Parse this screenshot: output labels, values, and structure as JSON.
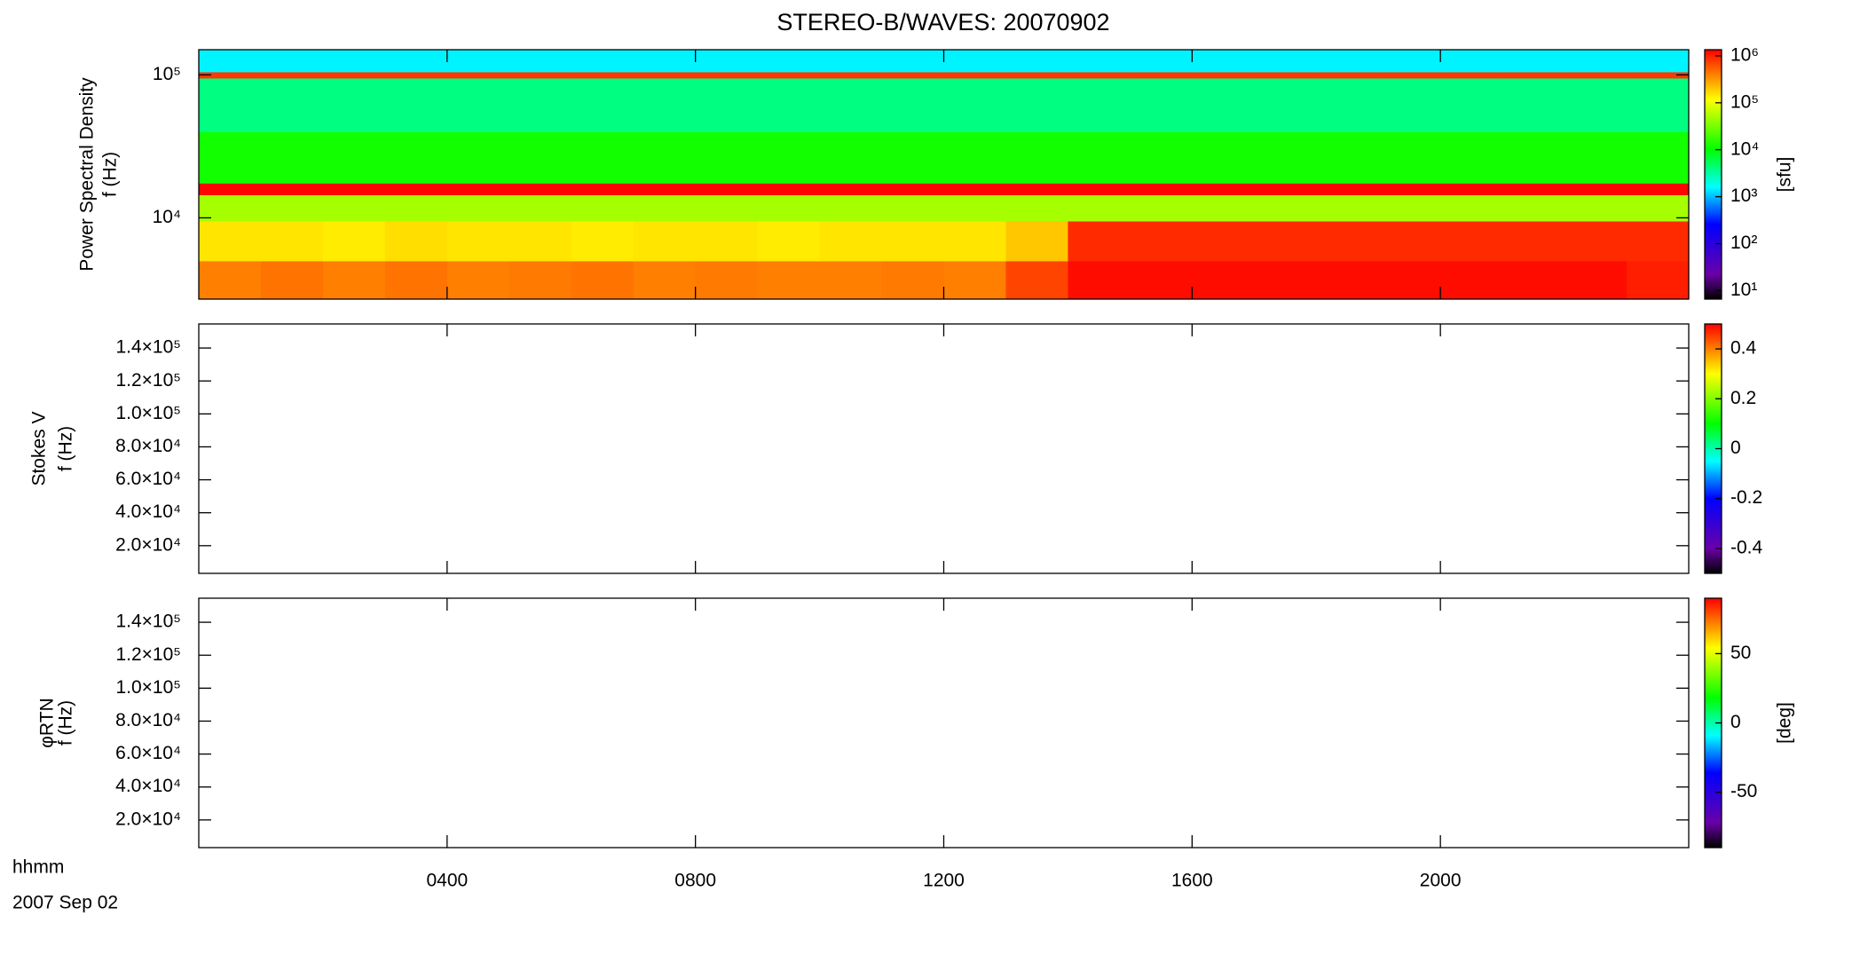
{
  "chart_data": [
    {
      "type": "heatmap",
      "title": "STEREO-B/WAVES: 20070902",
      "ylabel": [
        "Power Spectral Density",
        "f (Hz)"
      ],
      "ylog": true,
      "ylim": [
        2700,
        150000
      ],
      "yticks": [
        {
          "value": 10000,
          "label": "10⁴"
        },
        {
          "value": 100000,
          "label": "10⁵"
        }
      ],
      "x_bins": [
        0,
        1,
        2,
        3,
        4,
        5,
        6,
        7,
        8,
        9,
        10,
        11,
        12,
        13,
        14,
        15,
        16,
        17,
        18,
        19,
        20,
        21,
        22,
        23,
        24
      ],
      "y_bins": [
        2700,
        5000,
        9500,
        14500,
        17500,
        40000,
        95000,
        105000,
        150000
      ],
      "z": [
        [
          400000,
          450000,
          400000,
          450000,
          400000,
          420000,
          450000,
          400000,
          420000,
          400000,
          400000,
          420000,
          400000,
          700000,
          1200000,
          1200000,
          1200000,
          1200000,
          1200000,
          1200000,
          1200000,
          1200000,
          1200000,
          1000000
        ],
        [
          150000,
          150000,
          140000,
          160000,
          150000,
          150000,
          140000,
          150000,
          150000,
          140000,
          150000,
          150000,
          150000,
          200000,
          900000,
          900000,
          900000,
          900000,
          900000,
          900000,
          900000,
          900000,
          900000,
          900000
        ],
        [
          50000,
          50000,
          50000,
          50000,
          50000,
          50000,
          50000,
          50000,
          50000,
          50000,
          50000,
          50000,
          50000,
          50000,
          50000,
          50000,
          50000,
          50000,
          50000,
          50000,
          50000,
          50000,
          50000,
          50000
        ],
        [
          1300000,
          1300000,
          1300000,
          1300000,
          1300000,
          1300000,
          1300000,
          1300000,
          1300000,
          1300000,
          1300000,
          1300000,
          1300000,
          1300000,
          1300000,
          1300000,
          1300000,
          1300000,
          1300000,
          1300000,
          1300000,
          1300000,
          1300000,
          1300000
        ],
        [
          12000,
          12000,
          12000,
          12000,
          12000,
          12000,
          12000,
          12000,
          12000,
          12000,
          12000,
          12000,
          12000,
          12000,
          12000,
          12000,
          12000,
          12000,
          12000,
          12000,
          12000,
          12000,
          12000,
          12000
        ],
        [
          4000,
          4000,
          4000,
          4000,
          4000,
          4000,
          4000,
          4000,
          4000,
          4000,
          4000,
          4000,
          4000,
          4000,
          4000,
          4000,
          4000,
          4000,
          4000,
          4000,
          4000,
          4000,
          4000,
          4000
        ],
        [
          800000,
          800000,
          800000,
          800000,
          800000,
          800000,
          800000,
          800000,
          800000,
          800000,
          800000,
          800000,
          800000,
          800000,
          800000,
          800000,
          800000,
          800000,
          800000,
          800000,
          800000,
          800000,
          800000,
          800000
        ],
        [
          1500,
          1500,
          1500,
          1500,
          1500,
          1500,
          1500,
          1500,
          1500,
          1500,
          1500,
          1500,
          1500,
          1500,
          1500,
          1500,
          1500,
          1500,
          1500,
          1500,
          1500,
          1500,
          1500,
          1500
        ]
      ],
      "colormap": "rainbow",
      "colorbar": {
        "log": true,
        "clim": [
          6.6,
          1350000
        ],
        "label": "[sfu]",
        "ticks": [
          {
            "value": 10,
            "label": "10¹"
          },
          {
            "value": 100,
            "label": "10²"
          },
          {
            "value": 1000,
            "label": "10³"
          },
          {
            "value": 10000,
            "label": "10⁴"
          },
          {
            "value": 100000,
            "label": "10⁵"
          },
          {
            "value": 1000000,
            "label": "10⁶"
          }
        ]
      }
    },
    {
      "type": "heatmap",
      "ylabel": [
        "Stokes V",
        "f (Hz)"
      ],
      "ylog": false,
      "ylim": [
        3200,
        154600
      ],
      "yticks": [
        {
          "value": 20000,
          "label": "2.0×10⁴"
        },
        {
          "value": 40000,
          "label": "4.0×10⁴"
        },
        {
          "value": 60000,
          "label": "6.0×10⁴"
        },
        {
          "value": 80000,
          "label": "8.0×10⁴"
        },
        {
          "value": 100000,
          "label": "1.0×10⁵"
        },
        {
          "value": 120000,
          "label": "1.2×10⁵"
        },
        {
          "value": 140000,
          "label": "1.4×10⁵"
        }
      ],
      "colormap": "rainbow",
      "colorbar": {
        "log": false,
        "clim": [
          -0.5,
          0.5
        ],
        "ticks": [
          -0.4,
          -0.2,
          0.0,
          0.2,
          0.4
        ]
      }
    },
    {
      "type": "heatmap",
      "ylabel": [
        "φRTN",
        "f (Hz)"
      ],
      "ylog": false,
      "ylim": [
        3200,
        154600
      ],
      "yticks": [
        {
          "value": 20000,
          "label": "2.0×10⁴"
        },
        {
          "value": 40000,
          "label": "4.0×10⁴"
        },
        {
          "value": 60000,
          "label": "6.0×10⁴"
        },
        {
          "value": 80000,
          "label": "8.0×10⁴"
        },
        {
          "value": 100000,
          "label": "1.0×10⁵"
        },
        {
          "value": 120000,
          "label": "1.2×10⁵"
        },
        {
          "value": 140000,
          "label": "1.4×10⁵"
        }
      ],
      "colormap": "rainbow",
      "colorbar": {
        "log": false,
        "clim": [
          -90,
          90
        ],
        "label": "[deg]",
        "ticks": [
          -50,
          0,
          50
        ]
      },
      "xlabel": [
        "hhmm",
        "2007 Sep 02"
      ],
      "xlim": [
        0,
        24
      ],
      "xticks": [
        {
          "value": 4,
          "label": "0400"
        },
        {
          "value": 8,
          "label": "0800"
        },
        {
          "value": 12,
          "label": "1200"
        },
        {
          "value": 16,
          "label": "1600"
        },
        {
          "value": 20,
          "label": "2000"
        }
      ]
    }
  ]
}
